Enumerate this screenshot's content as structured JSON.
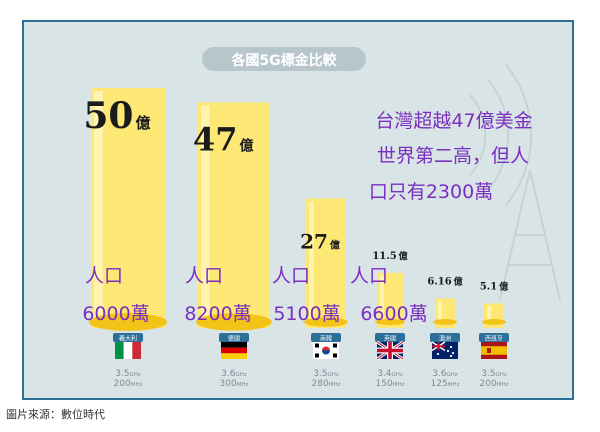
{
  "chart_data": {
    "type": "bar",
    "title": "各國5G標金比較",
    "unit": "億",
    "categories": [
      "義大利",
      "德國",
      "南韓",
      "英國",
      "澳洲",
      "西班牙"
    ],
    "values": [
      50,
      47,
      27,
      11.5,
      6.16,
      5.1
    ],
    "value_labels": [
      {
        "num": "50",
        "unit": "億"
      },
      {
        "num": "47",
        "unit": "億"
      },
      {
        "num": "27",
        "unit": "億"
      },
      {
        "num": "11.5",
        "unit": "億"
      },
      {
        "num": "6.16",
        "unit": "億"
      },
      {
        "num": "5.1",
        "unit": "億"
      }
    ],
    "spectrum": [
      {
        "freq": "3.5",
        "funit": "GHz",
        "bw": "200",
        "bunit": "MHz"
      },
      {
        "freq": "3.6",
        "funit": "GHz",
        "bw": "300",
        "bunit": "MHz"
      },
      {
        "freq": "3.5",
        "funit": "GHz",
        "bw": "280",
        "bunit": "MHz"
      },
      {
        "freq": "3.4",
        "funit": "GHz",
        "bw": "150",
        "bunit": "MHz"
      },
      {
        "freq": "3.6",
        "funit": "GHz",
        "bw": "125",
        "bunit": "MHz"
      },
      {
        "freq": "3.5",
        "funit": "GHz",
        "bw": "200",
        "bunit": "MHz"
      }
    ],
    "flags": [
      "italy-flag",
      "germany-flag",
      "south-korea-flag",
      "uk-flag",
      "australia-flag",
      "spain-flag"
    ],
    "colors": {
      "background": "#d9e4e6",
      "frame": "#2c6f99",
      "bar": "#fde775",
      "bar_highlight": "#fff4b0",
      "coin": "#f3c318",
      "title_pill": "#b7c6cb",
      "value_text": "#1b1b1b",
      "sub_text": "#7d8b95",
      "annotation": "#7b2fc0"
    }
  },
  "annotations": {
    "main": [
      "台灣超越47億美金",
      "世界第二高，但人",
      "口只有2300萬"
    ],
    "population": [
      {
        "line1": "人口",
        "line2": "6000萬"
      },
      {
        "line1": "人口",
        "line2": "8200萬"
      },
      {
        "line1": "人口",
        "line2": "5100萬"
      },
      {
        "line1": "人口",
        "line2": "6600萬"
      }
    ]
  },
  "caption": "圖片來源：數位時代"
}
